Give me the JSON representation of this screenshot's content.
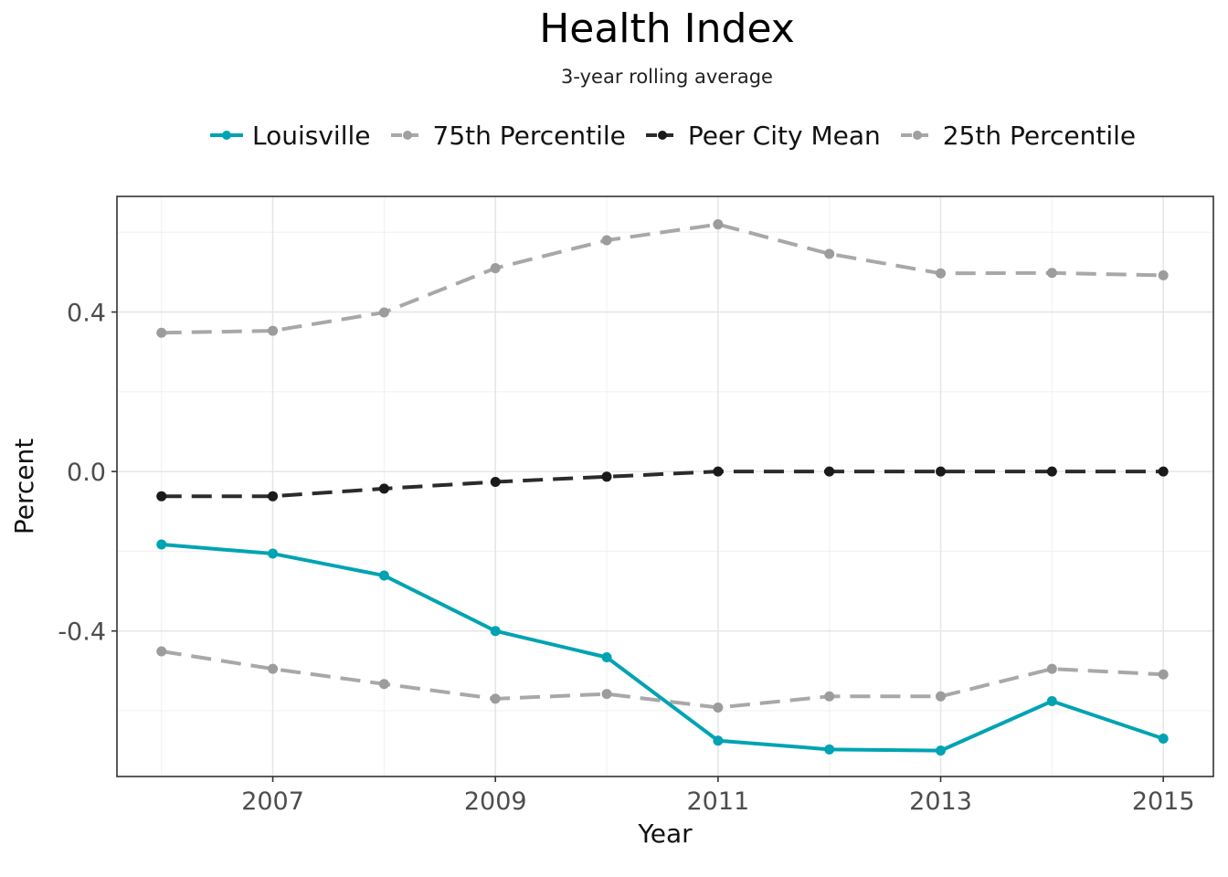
{
  "chart_data": {
    "type": "line",
    "title": "Health Index",
    "subtitle": "3-year rolling average",
    "xlabel": "Year",
    "ylabel": "Percent",
    "x": [
      2006,
      2007,
      2008,
      2009,
      2010,
      2011,
      2012,
      2013,
      2014,
      2015
    ],
    "xlim": [
      2005.6,
      2015.45
    ],
    "ylim": [
      -0.765,
      0.69
    ],
    "x_ticks": [
      2007,
      2009,
      2011,
      2013,
      2015
    ],
    "x_tick_labels": [
      "2007",
      "2009",
      "2011",
      "2013",
      "2015"
    ],
    "y_ticks": [
      -0.4,
      0.0,
      0.4
    ],
    "y_tick_labels": [
      "-0.4",
      "0.0",
      "0.4"
    ],
    "grid": true,
    "legend_position": "top",
    "series": [
      {
        "name": "Louisville",
        "color": "#00a3b3",
        "style": "solid",
        "values": [
          -0.183,
          -0.206,
          -0.261,
          -0.4,
          -0.466,
          -0.675,
          -0.697,
          -0.7,
          -0.576,
          -0.67
        ]
      },
      {
        "name": "75th Percentile",
        "color": "#a8a8a8",
        "style": "dashed",
        "values": [
          0.348,
          0.353,
          0.399,
          0.51,
          0.58,
          0.62,
          0.546,
          0.497,
          0.498,
          0.492
        ]
      },
      {
        "name": "Peer City Mean",
        "color": "#2b2b2b",
        "style": "dashed",
        "values": [
          -0.062,
          -0.062,
          -0.043,
          -0.026,
          -0.013,
          0.0,
          0.0,
          0.0,
          0.0,
          0.0
        ]
      },
      {
        "name": "25th Percentile",
        "color": "#a8a8a8",
        "style": "dashed",
        "values": [
          -0.451,
          -0.495,
          -0.533,
          -0.57,
          -0.558,
          -0.592,
          -0.564,
          -0.564,
          -0.495,
          -0.509
        ]
      }
    ]
  }
}
